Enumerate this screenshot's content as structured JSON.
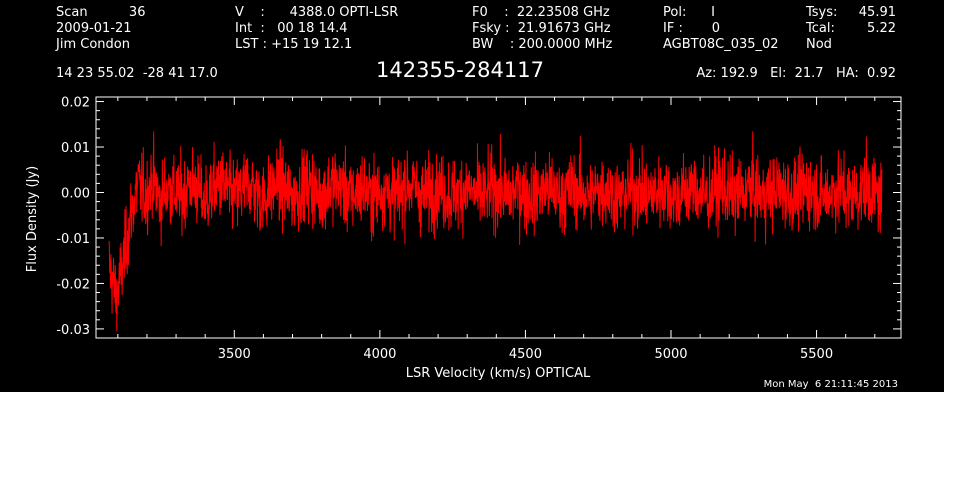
{
  "header": {
    "col1": [
      "Scan          36",
      "2009-01-21",
      "Jim Condon"
    ],
    "col2": [
      "V    :      4388.0 OPTI-LSR",
      "Int  :   00 18 14.4",
      "LST : +15 19 12.1"
    ],
    "col3": [
      "F0    :  22.23508 GHz",
      "Fsky :  21.91673 GHz",
      "BW    : 200.0000 MHz"
    ],
    "col4": [
      "Pol:      I",
      "IF :       0",
      "AGBT08C_035_02"
    ],
    "col5_labels": [
      "Tsys:",
      "Tcal:",
      "Nod"
    ],
    "col5_values": [
      "45.91",
      "5.22",
      ""
    ],
    "coords": "14 23 55.02  -28 41 17.0",
    "source": "142355-284117",
    "azel": "Az: 192.9   El:  21.7   HA:  0.92"
  },
  "timestamp": "Mon May  6 21:11:45 2013",
  "colors": {
    "background": "#000000",
    "trace": "#ff0000",
    "axes": "#ffffff"
  },
  "chart_data": {
    "type": "line",
    "title": "",
    "xlabel": "LSR Velocity (km/s) OPTICAL",
    "ylabel": "Flux Density (Jy)",
    "xlim": [
      3025,
      5790
    ],
    "ylim": [
      -0.032,
      0.021
    ],
    "x_ticks": [
      3500,
      4000,
      4500,
      5000,
      5500
    ],
    "y_ticks": [
      -0.03,
      -0.02,
      -0.01,
      0.0,
      0.01,
      0.02
    ],
    "y_tick_labels": [
      "-0.03",
      "-0.02",
      "-0.01",
      "0.00",
      "0.01",
      "0.02"
    ],
    "grid": false,
    "series": [
      {
        "color": "#ff0000",
        "x_start": 3070,
        "x_end": 5725,
        "x_step": 25,
        "noise_rms": 0.004,
        "values": [
          -0.016,
          -0.023,
          -0.015,
          -0.005,
          0.002,
          -0.001,
          0.003,
          -0.002,
          0.001,
          0.0,
          -0.001,
          0.002,
          0.001,
          -0.002,
          0.0,
          0.002,
          0.001,
          -0.001,
          0.0,
          0.002,
          0.001,
          -0.002,
          0.0,
          0.002,
          0.001,
          -0.001,
          0.0,
          0.002,
          0.001,
          -0.001,
          0.001,
          0.002,
          0.001,
          -0.001,
          0.0,
          0.001,
          -0.001,
          0.0,
          0.001,
          -0.001,
          0.0,
          0.002,
          0.001,
          -0.001,
          0.0,
          0.001,
          0.0,
          -0.001,
          0.0,
          0.001,
          0.0,
          -0.001,
          0.0,
          0.001,
          0.0,
          -0.001,
          0.001,
          0.0,
          -0.001,
          0.0,
          0.001,
          0.0,
          -0.001,
          0.0,
          0.001,
          0.0,
          -0.001,
          0.0,
          0.001,
          0.0,
          -0.001,
          0.0,
          0.001,
          0.0,
          -0.001,
          0.0,
          0.001,
          0.0,
          -0.001,
          0.0,
          0.001,
          0.0,
          -0.001,
          0.0,
          0.001,
          0.0,
          -0.001,
          0.0,
          0.001,
          0.0,
          -0.001,
          0.0,
          0.001,
          0.0,
          -0.001,
          0.0,
          0.001,
          0.0,
          -0.001,
          0.0,
          0.001,
          0.0,
          -0.001,
          0.0,
          0.001,
          0.0,
          -0.001,
          0.0,
          0.001,
          0.001,
          0.002,
          0.003
        ]
      }
    ]
  }
}
